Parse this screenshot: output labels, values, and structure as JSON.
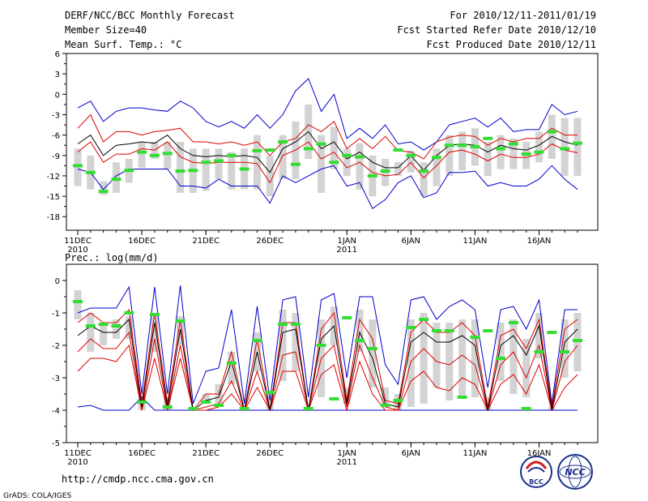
{
  "header": {
    "title": "DERF/NCC/BCC Monthly Forecast",
    "member_size": "Member Size=40",
    "variable1": "Mean Surf. Temp.: °C",
    "period": "For 2010/12/11-2011/01/19",
    "started": "Fcst Started Refer Date 2010/12/10",
    "produced": "Fcst Produced Date 2010/12/11"
  },
  "footer": {
    "url": "http://cmdp.ncc.cma.gov.cn",
    "credit": "GrADS: COLA/IGES",
    "logo_bcc": "BCC",
    "logo_ncc": "NCC"
  },
  "colors": {
    "outer": "#0000cc",
    "inner": "#dd0000",
    "mean": "#000000",
    "box": "#d3d3d3",
    "obs": "#33dd33"
  },
  "x_axis": {
    "tick_days": [
      0,
      5,
      10,
      15,
      21,
      26,
      31,
      36
    ],
    "labels": [
      "11DEC",
      "16DEC",
      "21DEC",
      "26DEC",
      "1JAN",
      "6JAN",
      "11JAN",
      "16JAN"
    ],
    "year_labels": [
      {
        "day": 0,
        "text": "2010"
      },
      {
        "day": 21,
        "text": "2011"
      }
    ]
  },
  "chart_data": [
    {
      "type": "line",
      "title": "Mean Surf. Temp.: °C",
      "ylim": [
        -20,
        6
      ],
      "yticks": [
        6,
        3,
        0,
        -3,
        -6,
        -9,
        -12,
        -15,
        -18
      ],
      "days": 40,
      "series": [
        {
          "name": "max",
          "values": [
            -2,
            -1,
            -4,
            -2.5,
            -2,
            -2,
            -2.3,
            -2.5,
            -1,
            -2,
            -4,
            -4.8,
            -4,
            -5,
            -3,
            -5,
            -3,
            0.5,
            2.3,
            -2.5,
            0,
            -6.5,
            -5,
            -6.5,
            -4.5,
            -7.3,
            -7,
            -8.2,
            -7,
            -4.5,
            -4,
            -3.5,
            -4.8,
            -3.5,
            -5.5,
            -5.2,
            -5.2,
            -1.5,
            -3,
            -2.5
          ]
        },
        {
          "name": "upper",
          "values": [
            -5,
            -3,
            -7,
            -5.5,
            -5.5,
            -6,
            -5.5,
            -5.3,
            -5,
            -7,
            -7,
            -7.3,
            -7,
            -7.5,
            -7,
            -9,
            -7,
            -6.5,
            -4.5,
            -5.5,
            -4,
            -8,
            -6.5,
            -8,
            -6.2,
            -8.3,
            -8.5,
            -9.5,
            -7,
            -6.3,
            -6,
            -6.2,
            -7.5,
            -6.5,
            -7,
            -6.5,
            -6.5,
            -5,
            -6,
            -6
          ]
        },
        {
          "name": "mean",
          "values": [
            -7.3,
            -6,
            -9,
            -7.5,
            -7.3,
            -7,
            -7.2,
            -6,
            -8,
            -9,
            -9.2,
            -9,
            -9.2,
            -9,
            -9.3,
            -11.5,
            -8,
            -7,
            -5.5,
            -8,
            -7,
            -9.5,
            -8.5,
            -10,
            -10.8,
            -10.8,
            -9,
            -11.2,
            -9,
            -7.5,
            -7.3,
            -7.5,
            -8.5,
            -7.5,
            -8,
            -8.2,
            -7.5,
            -6.2,
            -7,
            -7.5
          ]
        },
        {
          "name": "lower",
          "values": [
            -8.5,
            -7,
            -10,
            -8.8,
            -8.8,
            -8,
            -8.2,
            -7,
            -9.2,
            -10,
            -10.2,
            -10,
            -10,
            -10,
            -10.2,
            -13,
            -9,
            -8.2,
            -7,
            -9.5,
            -8.5,
            -10.8,
            -10,
            -11.5,
            -12,
            -11.8,
            -10,
            -12.3,
            -10.5,
            -8.5,
            -8.2,
            -8.8,
            -9.8,
            -8.8,
            -9.3,
            -9.3,
            -8.8,
            -7.3,
            -8.2,
            -8.6
          ]
        },
        {
          "name": "min",
          "values": [
            -11,
            -11.5,
            -14,
            -12,
            -11,
            -11,
            -11,
            -11,
            -13.5,
            -13.5,
            -13.8,
            -12.5,
            -13.5,
            -13.5,
            -13.5,
            -16,
            -12,
            -13,
            -12,
            -11,
            -10.5,
            -13.5,
            -13,
            -16.8,
            -15.5,
            -13,
            -12,
            -15.2,
            -14.5,
            -11.5,
            -11.5,
            -11.3,
            -13.5,
            -13,
            -13.5,
            -13.5,
            -12.5,
            -10.5,
            -12.5,
            -14
          ]
        },
        {
          "name": "box_top",
          "values": [
            -8,
            -9,
            -12.8,
            -10,
            -9.5,
            -7,
            -7,
            -7,
            -7,
            -8,
            -8,
            -8,
            -8.5,
            -8,
            -6,
            -9,
            -6,
            -4,
            -1.5,
            -6,
            -4.8,
            -8,
            -7.2,
            -9,
            -9.5,
            -10,
            -8.3,
            -10,
            -8,
            -6,
            -5.5,
            -5,
            -7,
            -6,
            -6.5,
            -7,
            -5.5,
            -3,
            -3.5,
            -3.5
          ]
        },
        {
          "name": "box_bottom",
          "values": [
            -13.5,
            -14,
            -14.8,
            -14.5,
            -13,
            -10.8,
            -9.5,
            -11,
            -14.5,
            -14.5,
            -14.2,
            -12.5,
            -14,
            -14,
            -14,
            -15,
            -12.5,
            -12.5,
            -9.5,
            -14.5,
            -11,
            -12,
            -14,
            -15,
            -13.5,
            -12,
            -11.5,
            -15,
            -13.5,
            -12,
            -11.2,
            -10.5,
            -12,
            -11,
            -11,
            -11,
            -10,
            -9.5,
            -12,
            -12
          ]
        },
        {
          "name": "observed",
          "values": [
            -10.5,
            -11.5,
            -14.3,
            -12.5,
            -11.2,
            -8.5,
            -9,
            -8.7,
            -11.3,
            -11.2,
            -10,
            -9.8,
            -9,
            -11,
            -8.3,
            -8.2,
            -7,
            -10.3,
            -8,
            -7.3,
            -10,
            -9,
            -9.2,
            -12,
            -11.3,
            -8.2,
            -9,
            -11.3,
            -9.3,
            -7.5,
            -7.5,
            -7.7,
            -6.5,
            -8,
            -7.3,
            -8.8,
            -8.5,
            -5.5,
            -8,
            -7.2
          ]
        }
      ]
    },
    {
      "type": "line",
      "title": "Prec.: log(mm/d)",
      "ylim": [
        -5,
        0.5
      ],
      "yticks": [
        0,
        -1,
        -2,
        -3,
        -4,
        -5
      ],
      "days": 40,
      "series": [
        {
          "name": "max",
          "values": [
            -1,
            -0.85,
            -0.85,
            -0.85,
            -0.2,
            -3.5,
            -0.2,
            -3.5,
            -0.15,
            -3.8,
            -2.8,
            -2.7,
            -0.9,
            -3.8,
            -0.8,
            -3.7,
            -0.6,
            -0.5,
            -3.6,
            -0.6,
            -0.4,
            -3,
            -0.5,
            -0.5,
            -2.6,
            -3.2,
            -0.6,
            -0.5,
            -1.2,
            -0.8,
            -0.6,
            -0.9,
            -3.3,
            -0.9,
            -0.8,
            -1.5,
            -0.6,
            -3.8,
            -0.9,
            -0.9
          ]
        },
        {
          "name": "upper",
          "values": [
            -1.3,
            -1,
            -1.3,
            -1.3,
            -0.9,
            -3.8,
            -1,
            -3.8,
            -1.2,
            -4,
            -3.5,
            -3.5,
            -2.2,
            -4,
            -1.8,
            -4,
            -1.3,
            -1.3,
            -4,
            -1.5,
            -1,
            -3.7,
            -1.2,
            -1.8,
            -3.7,
            -3.8,
            -1.6,
            -1.2,
            -1.6,
            -1.6,
            -1.3,
            -1.7,
            -3.9,
            -1.7,
            -1.5,
            -2.1,
            -1.2,
            -3.9,
            -1.5,
            -1.2
          ]
        },
        {
          "name": "mean",
          "values": [
            -1.7,
            -1.4,
            -1.6,
            -1.6,
            -1.2,
            -3.9,
            -1.3,
            -3.9,
            -1.5,
            -4,
            -3.7,
            -3.6,
            -2.5,
            -4,
            -2.2,
            -4,
            -1.6,
            -1.5,
            -4,
            -1.8,
            -1.4,
            -3.8,
            -1.6,
            -2.4,
            -3.8,
            -3.9,
            -1.9,
            -1.6,
            -1.9,
            -1.9,
            -1.7,
            -2,
            -4,
            -2,
            -1.7,
            -2.3,
            -1.4,
            -4,
            -1.9,
            -1.5
          ]
        },
        {
          "name": "lower",
          "values": [
            -2.2,
            -1.8,
            -2.1,
            -2.1,
            -1.6,
            -4,
            -1.8,
            -4,
            -2,
            -4,
            -3.9,
            -3.8,
            -3.1,
            -4,
            -2.8,
            -4,
            -2.3,
            -2.2,
            -4,
            -2.4,
            -2,
            -3.9,
            -2,
            -3,
            -3.9,
            -4,
            -2.5,
            -2.1,
            -2.5,
            -2.6,
            -2.3,
            -2.6,
            -4,
            -2.6,
            -2.2,
            -3,
            -2,
            -4,
            -2.5,
            -2
          ]
        },
        {
          "name": "lower2",
          "values": [
            -2.8,
            -2.4,
            -2.4,
            -2.5,
            -2,
            -4,
            -2.4,
            -4,
            -2.4,
            -4,
            -4,
            -3.9,
            -3.5,
            -4,
            -3.3,
            -4,
            -2.8,
            -2.8,
            -4,
            -2.9,
            -2.6,
            -4,
            -2.5,
            -3.5,
            -4,
            -4,
            -3.1,
            -2.8,
            -3.3,
            -3.4,
            -3,
            -3.2,
            -4,
            -3.2,
            -2.9,
            -3.5,
            -2.6,
            -4,
            -3.3,
            -2.9
          ]
        },
        {
          "name": "min",
          "values": [
            -3.9,
            -3.85,
            -4,
            -4,
            -4,
            -4,
            -4,
            -4,
            -4,
            -4,
            -4,
            -4,
            -4,
            -4,
            -4,
            -4,
            -4,
            -4,
            -4,
            -4,
            -4,
            -4,
            -4,
            -4,
            -4,
            -4,
            -4,
            -4,
            -4,
            -4,
            -4,
            -4,
            -4,
            -4,
            -4,
            -4,
            -4,
            -4,
            -4,
            -4
          ]
        },
        {
          "name": "min_bump",
          "values": [
            -3.9,
            -3.85,
            -4,
            -4,
            -4,
            -3.6,
            -4,
            -4,
            -4,
            -4,
            -4,
            -4,
            -4,
            -4,
            -4,
            -4,
            -4,
            -4,
            -4,
            -4,
            -4,
            -4,
            -4,
            -4,
            -4,
            -4,
            -4,
            -4,
            -4,
            -4,
            -4,
            -4,
            -4,
            -4,
            -4,
            -4,
            -4,
            -4,
            -4,
            -4
          ]
        },
        {
          "name": "box_top",
          "values": [
            -0.3,
            -1,
            -1.3,
            -1.2,
            -1.1,
            -3.5,
            -1,
            -3.6,
            -1.1,
            -3.9,
            -3.5,
            -3.2,
            -2.2,
            -3.9,
            -1.6,
            -3.6,
            -0.9,
            -1,
            -3.9,
            -1.2,
            -0.8,
            -3.3,
            -0.9,
            -1.2,
            -3.3,
            -3.5,
            -1.2,
            -1,
            -1.3,
            -1.3,
            -1.2,
            -1.2,
            -3.6,
            -1.3,
            -1.2,
            -1.8,
            -1,
            -3.9,
            -1.2,
            -1
          ]
        },
        {
          "name": "box_bottom",
          "values": [
            -1.2,
            -2.2,
            -2,
            -1.8,
            -1.8,
            -4,
            -2.2,
            -4,
            -2,
            -4,
            -3.8,
            -3.8,
            -3.2,
            -4,
            -2.8,
            -4,
            -3.1,
            -2.8,
            -4,
            -3.6,
            -2,
            -3.8,
            -2.2,
            -3.3,
            -3.9,
            -4,
            -3.9,
            -3.8,
            -3.3,
            -3.7,
            -3.6,
            -3.6,
            -4,
            -3.1,
            -3.5,
            -3.6,
            -2.4,
            -4,
            -3,
            -2.8
          ]
        },
        {
          "name": "observed",
          "values": [
            -0.65,
            -1.4,
            -1.35,
            -1.4,
            -1,
            -3.75,
            -1.05,
            -3.9,
            -1.25,
            -3.95,
            -3.75,
            -3.85,
            -2.55,
            -3.95,
            -1.85,
            -3.45,
            -1.35,
            -1.35,
            -3.95,
            -2,
            -3.65,
            -1.15,
            -1.85,
            -2.1,
            -3.85,
            -3.7,
            -1.45,
            -1.2,
            -1.55,
            -1.55,
            -3.6,
            -1.75,
            -1.55,
            -2.4,
            -1.3,
            -3.95,
            -2.2,
            -1.6,
            -2.2,
            -1.85
          ]
        }
      ]
    }
  ]
}
